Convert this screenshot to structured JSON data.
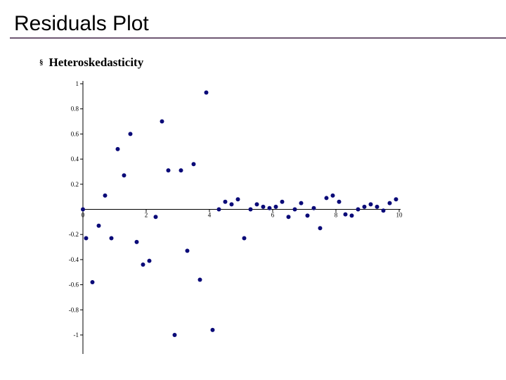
{
  "slide": {
    "title": "Residuals Plot",
    "bullet_marker": "§",
    "bullet_text": "Heteroskedasticity"
  },
  "colors": {
    "points": "#0a0a78",
    "axis": "#000000",
    "title_rule": "#6e5873"
  },
  "chart_data": {
    "type": "scatter",
    "title": "",
    "xlabel": "",
    "ylabel": "",
    "xlim": [
      0,
      10
    ],
    "ylim": [
      -1,
      1
    ],
    "x_ticks": [
      0,
      2,
      4,
      6,
      8,
      10
    ],
    "x_tick_labels": [
      "0",
      "2",
      "4",
      "6",
      "8",
      "10"
    ],
    "y_ticks": [
      1,
      0.8,
      0.6,
      0.4,
      0.2,
      -0.2,
      -0.4,
      -0.6,
      -0.8,
      -1
    ],
    "y_tick_labels": [
      "1",
      "0.8",
      "0.6",
      "0.4",
      "0.2",
      "-0.2",
      "-0.4",
      "-0.6",
      "-0.8",
      "-1"
    ],
    "grid": false,
    "legend": "none",
    "series": [
      {
        "x": [
          0,
          0.1,
          0.3,
          0.5,
          0.7,
          0.9,
          1.1,
          1.3,
          1.5,
          1.7,
          1.9,
          2.1,
          2.3,
          2.5,
          2.7,
          2.9,
          3.1,
          3.3,
          3.5,
          3.7,
          3.9,
          4.1,
          4.3,
          4.5,
          4.7,
          4.9,
          5.1,
          5.3,
          5.5,
          5.7,
          5.9,
          6.1,
          6.3,
          6.5,
          6.7,
          6.9,
          7.1,
          7.3,
          7.5,
          7.7,
          7.9,
          8.1,
          8.3,
          8.5,
          8.7,
          8.9,
          9.1,
          9.3,
          9.5,
          9.7,
          9.9
        ],
        "y": [
          0,
          -0.23,
          -0.58,
          -0.13,
          0.11,
          -0.23,
          0.48,
          0.27,
          0.6,
          -0.26,
          -0.44,
          -0.41,
          -0.06,
          0.7,
          0.31,
          -1,
          0.31,
          -0.33,
          0.36,
          -0.56,
          0.93,
          -0.96,
          0,
          0.06,
          0.04,
          0.08,
          -0.23,
          0,
          0.04,
          0.02,
          0.01,
          0.02,
          0.06,
          -0.06,
          0,
          0.05,
          -0.05,
          0.01,
          -0.15,
          0.09,
          0.11,
          0.06,
          -0.04,
          -0.05,
          0,
          0.02,
          0.04,
          0.02,
          -0.01,
          0.05,
          0.08
        ]
      }
    ]
  }
}
